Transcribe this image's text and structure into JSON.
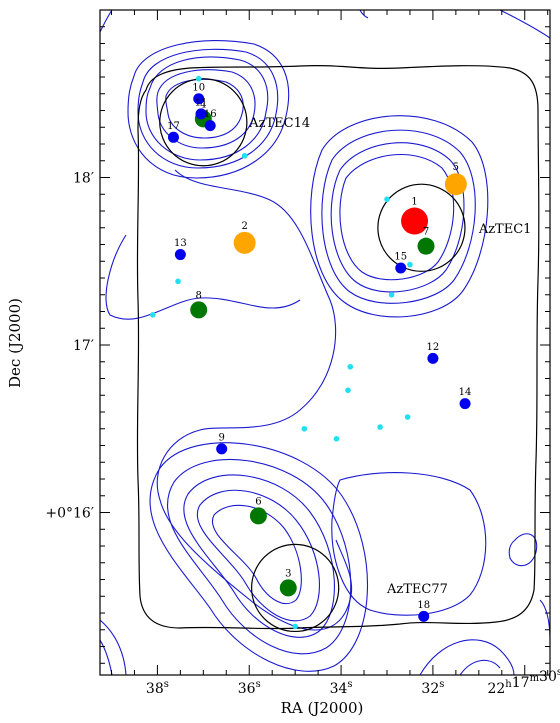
{
  "chart_data": {
    "type": "scatter",
    "xlabel": "RA (J2000)",
    "ylabel": "Dec (J2000)",
    "x_ticks": [
      {
        "value": 38,
        "label": "38",
        "sup": "s"
      },
      {
        "value": 36,
        "label": "36",
        "sup": "s"
      },
      {
        "value": 34,
        "label": "34",
        "sup": "s"
      },
      {
        "value": 32,
        "label": "32",
        "sup": "s"
      },
      {
        "value": 30,
        "label": "22",
        "sup": "h",
        "label2": "17",
        "sup2": "m",
        "label3": "30",
        "sup3": "s"
      }
    ],
    "y_ticks": [
      {
        "value": 16,
        "label": "+0°16",
        "prime": "′"
      },
      {
        "value": 17,
        "label": "17",
        "prime": "′"
      },
      {
        "value": 18,
        "label": "18",
        "prime": "′"
      }
    ],
    "xlim": [
      39.25,
      29.45
    ],
    "ylim": [
      15.03,
      19.0
    ],
    "annotations": [
      {
        "text": "AzTEC14",
        "x": 36.0,
        "y": 18.33
      },
      {
        "text": "AzTEC1",
        "x": 31.0,
        "y": 17.7
      },
      {
        "text": "AzTEC77",
        "x": 33.0,
        "y": 15.55
      }
    ],
    "beams": [
      {
        "name": "AzTEC14",
        "x": 37.0,
        "y": 18.33,
        "r_arcmin": 0.26
      },
      {
        "name": "AzTEC1",
        "x": 32.25,
        "y": 17.7,
        "r_arcmin": 0.26
      },
      {
        "name": "AzTEC77",
        "x": 35.0,
        "y": 15.55,
        "r_arcmin": 0.26
      }
    ],
    "sources": [
      {
        "id": "1",
        "x": 32.4,
        "y": 17.74,
        "color": "#ff0000",
        "size": "xl"
      },
      {
        "id": "2",
        "x": 36.1,
        "y": 17.61,
        "color": "#ffa500",
        "size": "lg"
      },
      {
        "id": "3",
        "x": 35.15,
        "y": 15.55,
        "color": "#007700",
        "size": "md"
      },
      {
        "id": "4",
        "x": 37.0,
        "y": 18.35,
        "color": "#007700",
        "size": "md"
      },
      {
        "id": "5",
        "x": 31.5,
        "y": 17.96,
        "color": "#ffa500",
        "size": "lg"
      },
      {
        "id": "6",
        "x": 35.8,
        "y": 15.98,
        "color": "#007700",
        "size": "md"
      },
      {
        "id": "7",
        "x": 32.15,
        "y": 17.59,
        "color": "#007700",
        "size": "md"
      },
      {
        "id": "8",
        "x": 37.1,
        "y": 17.21,
        "color": "#007700",
        "size": "md"
      },
      {
        "id": "9",
        "x": 36.6,
        "y": 16.38,
        "color": "#0000ee",
        "size": "sm"
      },
      {
        "id": "10",
        "x": 37.1,
        "y": 18.47,
        "color": "#0000ee",
        "size": "sm"
      },
      {
        "id": "11",
        "x": 37.05,
        "y": 18.38,
        "color": "#0000ee",
        "size": "sm"
      },
      {
        "id": "12",
        "x": 32.0,
        "y": 16.92,
        "color": "#0000ee",
        "size": "sm"
      },
      {
        "id": "13",
        "x": 37.5,
        "y": 17.54,
        "color": "#0000ee",
        "size": "sm"
      },
      {
        "id": "14",
        "x": 31.3,
        "y": 16.65,
        "color": "#0000ee",
        "size": "sm"
      },
      {
        "id": "15",
        "x": 32.7,
        "y": 17.46,
        "color": "#0000ee",
        "size": "sm"
      },
      {
        "id": "16",
        "x": 36.85,
        "y": 18.31,
        "color": "#0000ee",
        "size": "sm"
      },
      {
        "id": "17",
        "x": 37.65,
        "y": 18.24,
        "color": "#0000ee",
        "size": "sm"
      },
      {
        "id": "18",
        "x": 32.2,
        "y": 15.38,
        "color": "#0000ee",
        "size": "sm"
      }
    ],
    "minor_points": {
      "color": "#22e0f0",
      "points": [
        [
          37.1,
          18.59
        ],
        [
          36.1,
          18.13
        ],
        [
          33.0,
          17.87
        ],
        [
          32.5,
          17.48
        ],
        [
          37.55,
          17.38
        ],
        [
          38.1,
          17.18
        ],
        [
          32.9,
          17.3
        ],
        [
          33.8,
          16.87
        ],
        [
          33.85,
          16.73
        ],
        [
          32.55,
          16.57
        ],
        [
          34.8,
          16.5
        ],
        [
          34.1,
          16.44
        ],
        [
          33.15,
          16.51
        ],
        [
          35.0,
          15.32
        ]
      ]
    },
    "colors": {
      "contour": "#1a1ad0",
      "footprint": "#000000",
      "axis": "#000000",
      "background": "#ffffff"
    }
  }
}
